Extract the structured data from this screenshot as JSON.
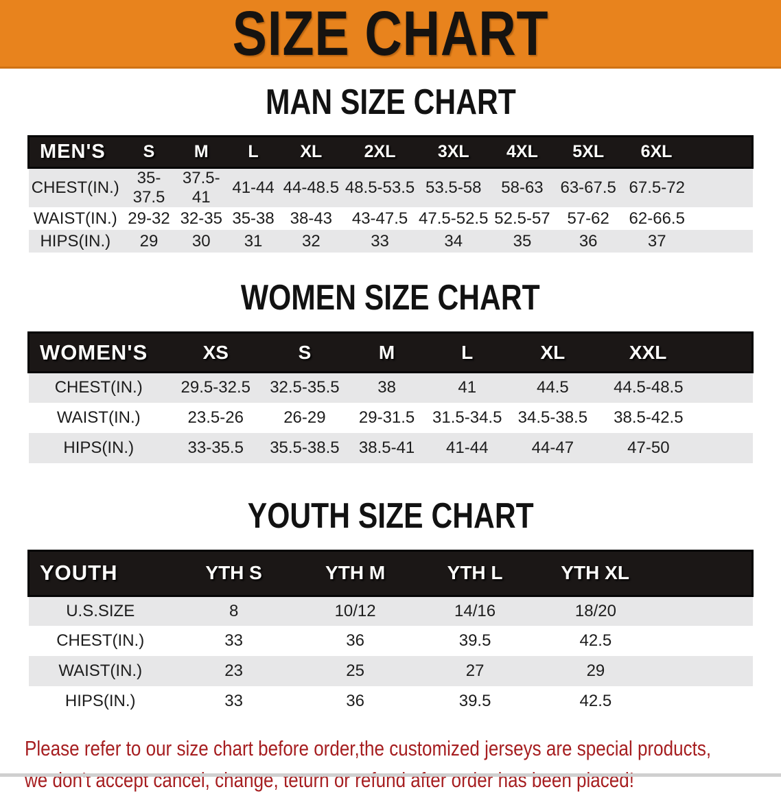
{
  "banner": {
    "title": "SIZE CHART"
  },
  "colors": {
    "banner_bg": "#E8831D",
    "header_bar": "#1B1716",
    "row_gray": "#E7E7E8",
    "disclaimer_red": "#A61E20"
  },
  "sections": [
    {
      "title": "MAN SIZE CHART",
      "header_label": "MEN'S",
      "columns": [
        "S",
        "M",
        "L",
        "XL",
        "2XL",
        "3XL",
        "4XL",
        "5XL",
        "6XL"
      ],
      "rows": [
        {
          "label": "CHEST(IN.)",
          "values": [
            "35-37.5",
            "37.5-41",
            "41-44",
            "44-48.5",
            "48.5-53.5",
            "53.5-58",
            "58-63",
            "63-67.5",
            "67.5-72"
          ]
        },
        {
          "label": "WAIST(IN.)",
          "values": [
            "29-32",
            "32-35",
            "35-38",
            "38-43",
            "43-47.5",
            "47.5-52.5",
            "52.5-57",
            "57-62",
            "62-66.5"
          ]
        },
        {
          "label": "HIPS(IN.)",
          "values": [
            "29",
            "30",
            "31",
            "32",
            "33",
            "34",
            "35",
            "36",
            "37"
          ]
        }
      ]
    },
    {
      "title": "WOMEN SIZE CHART",
      "header_label": "WOMEN'S",
      "columns": [
        "XS",
        "S",
        "M",
        "L",
        "XL",
        "XXL"
      ],
      "rows": [
        {
          "label": "CHEST(IN.)",
          "values": [
            "29.5-32.5",
            "32.5-35.5",
            "38",
            "41",
            "44.5",
            "44.5-48.5"
          ]
        },
        {
          "label": "WAIST(IN.)",
          "values": [
            "23.5-26",
            "26-29",
            "29-31.5",
            "31.5-34.5",
            "34.5-38.5",
            "38.5-42.5"
          ]
        },
        {
          "label": "HIPS(IN.)",
          "values": [
            "33-35.5",
            "35.5-38.5",
            "38.5-41",
            "41-44",
            "44-47",
            "47-50"
          ]
        }
      ]
    },
    {
      "title": "YOUTH SIZE CHART",
      "header_label": "YOUTH",
      "columns": [
        "YTH S",
        "YTH M",
        "YTH L",
        "YTH XL"
      ],
      "rows": [
        {
          "label": "U.S.SIZE",
          "values": [
            "8",
            "10/12",
            "14/16",
            "18/20"
          ]
        },
        {
          "label": "CHEST(IN.)",
          "values": [
            "33",
            "36",
            "39.5",
            "42.5"
          ]
        },
        {
          "label": "WAIST(IN.)",
          "values": [
            "23",
            "25",
            "27",
            "29"
          ]
        },
        {
          "label": "HIPS(IN.)",
          "values": [
            "33",
            "36",
            "39.5",
            "42.5"
          ]
        }
      ]
    }
  ],
  "footer": {
    "line1": "Please refer to our size chart before order,the customized jerseys are special products,",
    "line2": "we don't accept cancel, change, teturn or refund after order has been placed!"
  }
}
